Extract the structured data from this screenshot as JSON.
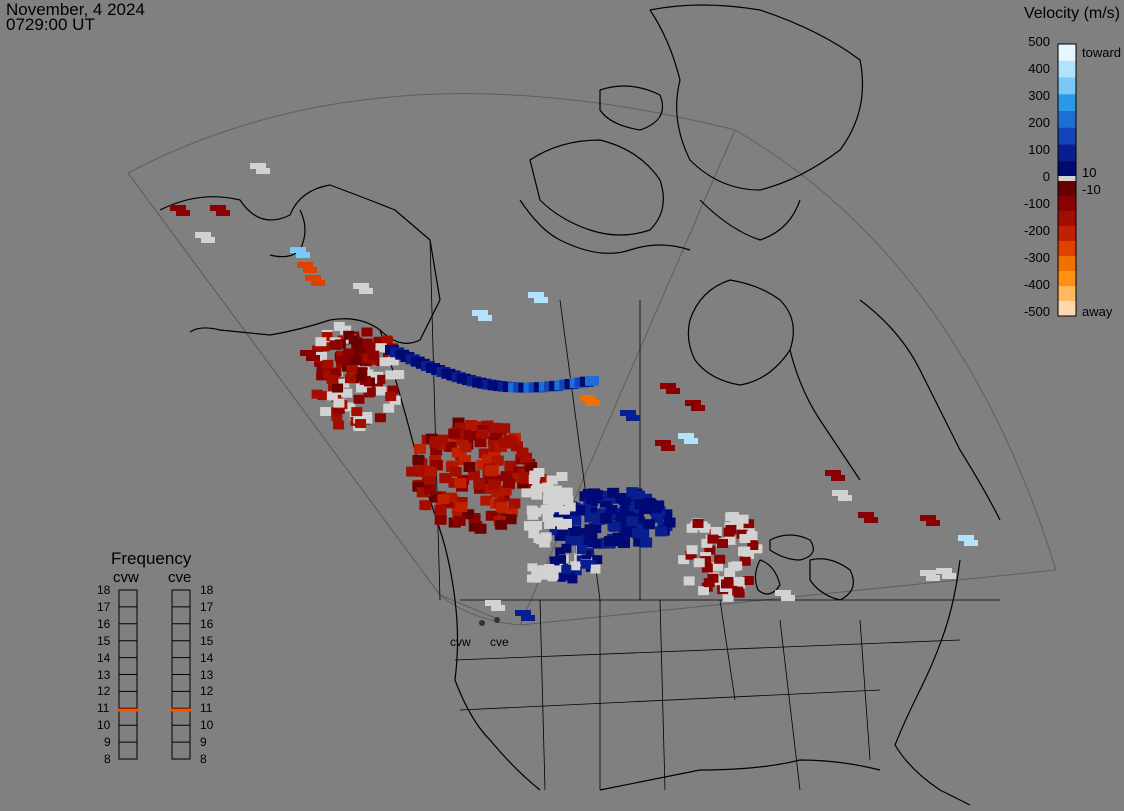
{
  "header": {
    "date": "November, 4 2024",
    "time": "0729:00 UT"
  },
  "colorbar": {
    "title": "Velocity (m/s)",
    "ticks": [
      "500",
      "400",
      "300",
      "200",
      "100",
      "0",
      "-100",
      "-200",
      "-300",
      "-400",
      "-500"
    ],
    "inner_positive_label": "10",
    "inner_negative_label": "-10",
    "toward_label": "toward",
    "away_label": "away",
    "colors_toward": [
      "#e6f5ff",
      "#b3e2ff",
      "#7cc8f5",
      "#2a9ae6",
      "#1d6fd6",
      "#1246b8",
      "#0a1f8f",
      "#000a70"
    ],
    "colors_away": [
      "#6a0000",
      "#8b0000",
      "#a30d00",
      "#c22000",
      "#e04000",
      "#f27000",
      "#ff9010",
      "#ffb860",
      "#ffd8b0"
    ]
  },
  "frequency_panel": {
    "title": "Frequency",
    "columns": [
      {
        "name": "cvw",
        "value_mhz": 10.9
      },
      {
        "name": "cve",
        "value_mhz": 10.9
      }
    ],
    "scale_labels": [
      "18",
      "17",
      "16",
      "15",
      "14",
      "13",
      "12",
      "11",
      "10",
      "9",
      "8"
    ],
    "marker_color": "#ff5000"
  },
  "radar_sites": [
    {
      "name": "cvw"
    },
    {
      "name": "cve"
    }
  ],
  "legend_colors": {
    "ground_scatter": "#d2d2d2",
    "coastline": "#000000",
    "background": "#808080",
    "fov_outline": "#5a5a5a"
  }
}
